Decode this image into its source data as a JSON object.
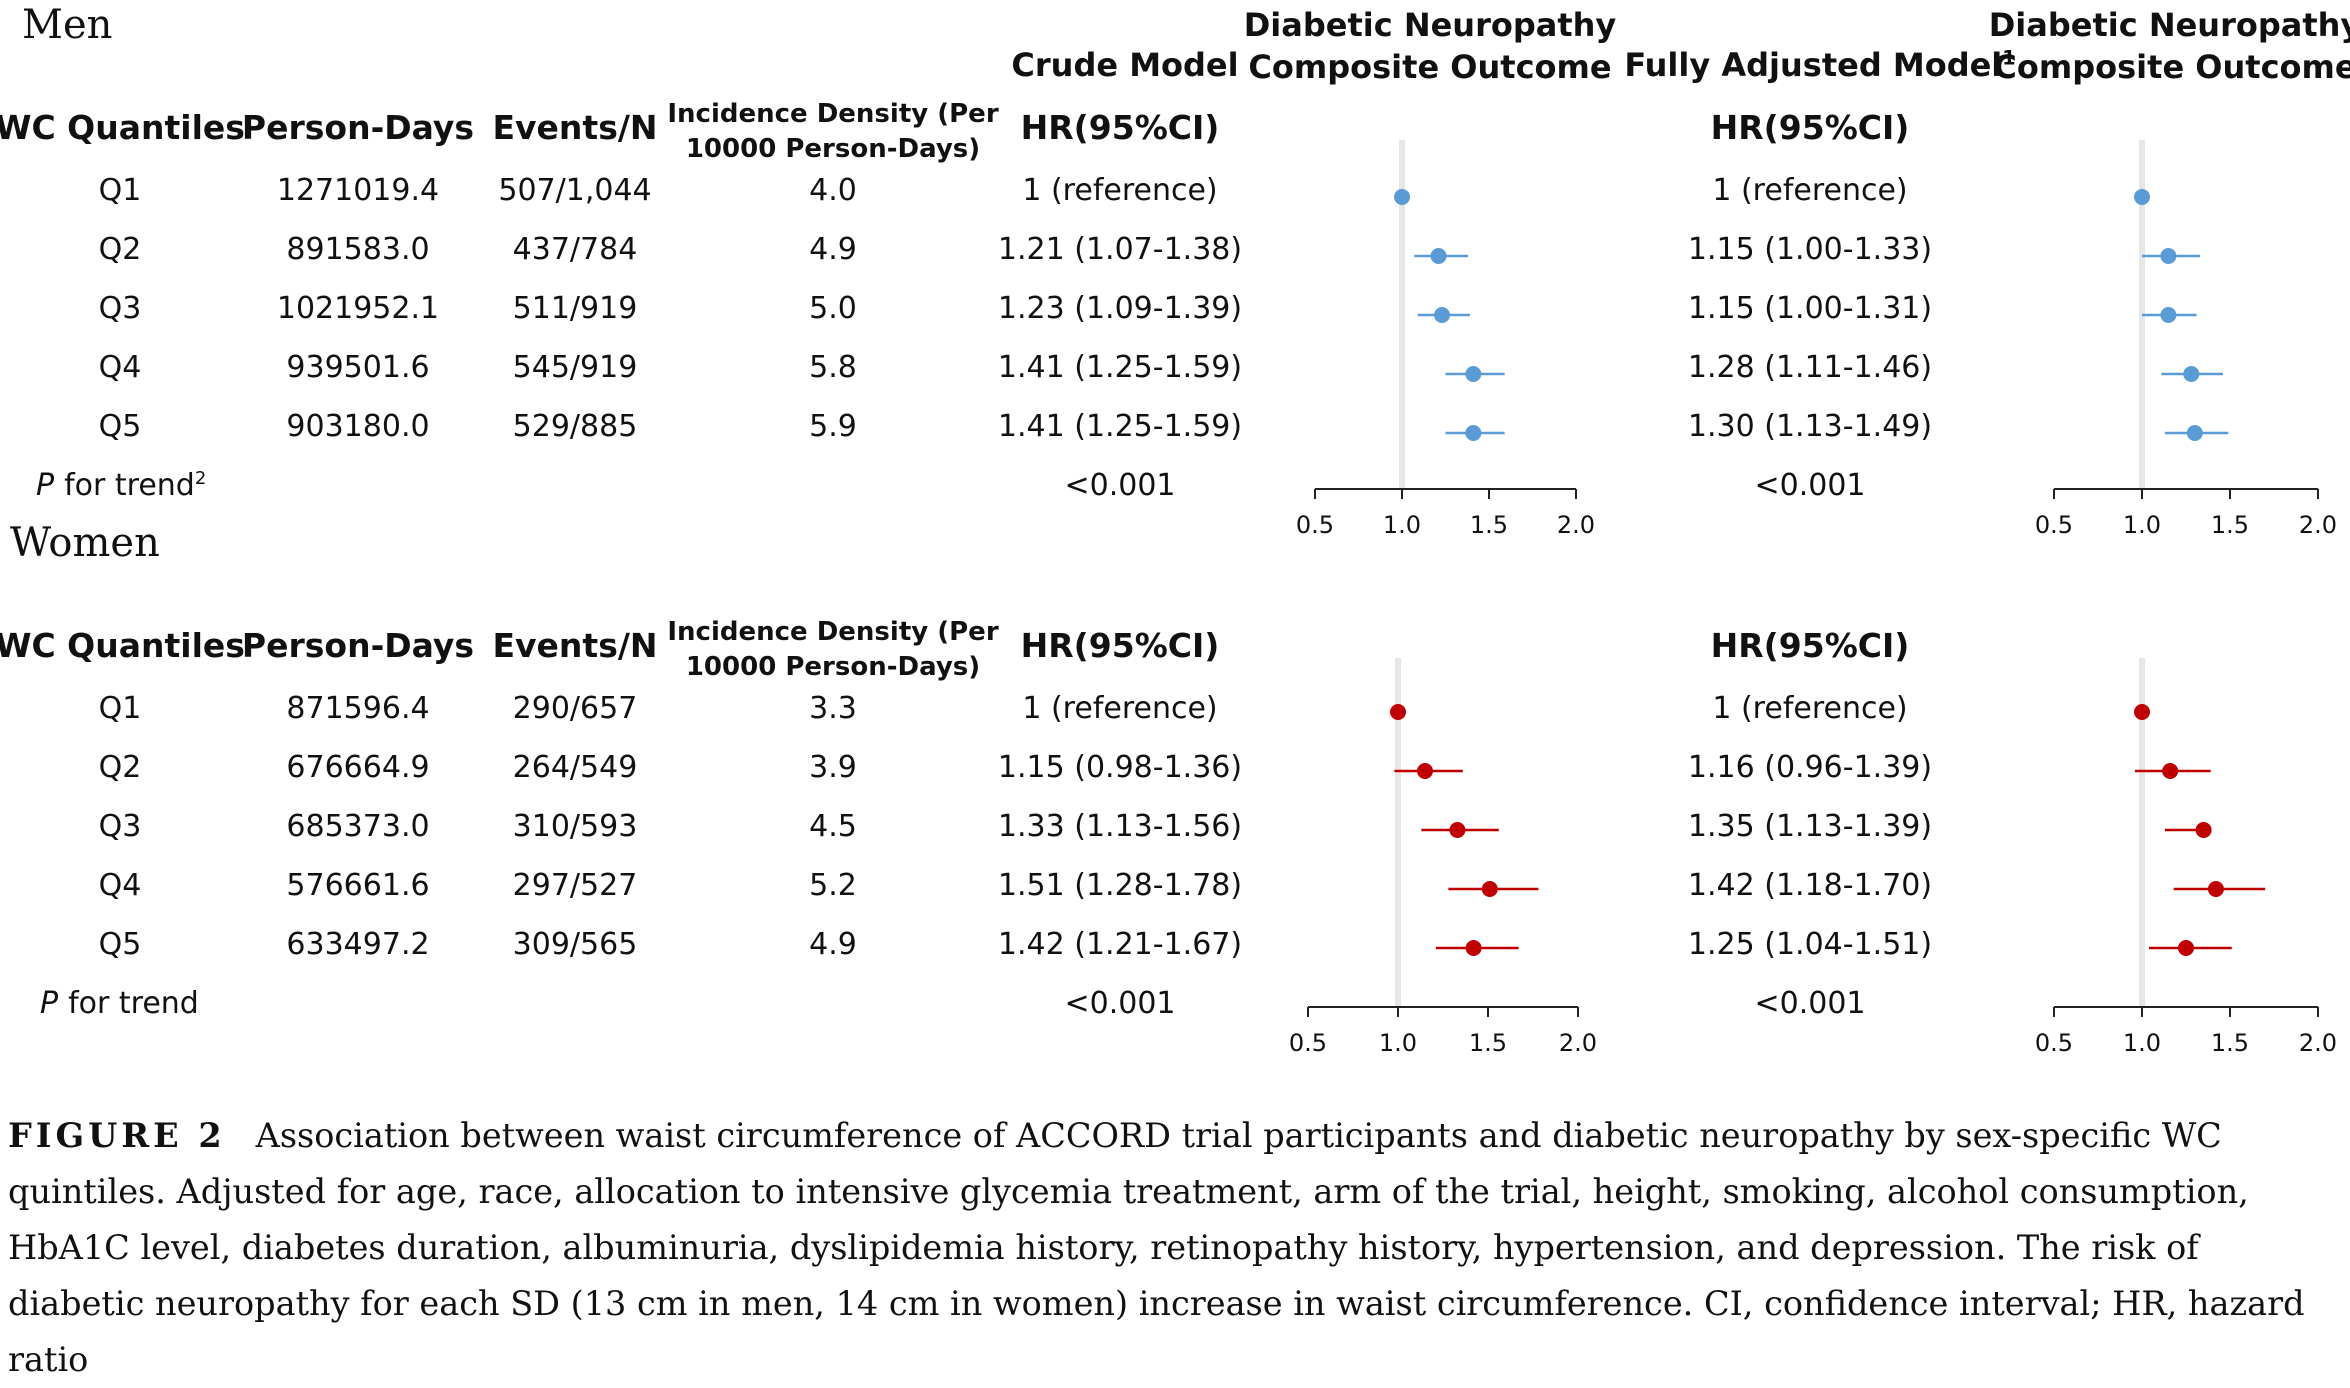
{
  "sections": [
    {
      "title": "Men",
      "trend_label": "for trend",
      "trend_sup": "2",
      "crude_trend": "<0.001",
      "adj_trend": "<0.001",
      "rows": [
        {
          "q": "Q1",
          "pd": "1271019.4",
          "ev": "507/1,044",
          "inc": "4.0",
          "crude": "1 (reference)",
          "adj": "1 (reference)"
        },
        {
          "q": "Q2",
          "pd": "891583.0",
          "ev": "437/784",
          "inc": "4.9",
          "crude": "1.21 (1.07-1.38)",
          "adj": "1.15 (1.00-1.33)"
        },
        {
          "q": "Q3",
          "pd": "1021952.1",
          "ev": "511/919",
          "inc": "5.0",
          "crude": "1.23 (1.09-1.39)",
          "adj": "1.15 (1.00-1.31)"
        },
        {
          "q": "Q4",
          "pd": "939501.6",
          "ev": "545/919",
          "inc": "5.8",
          "crude": "1.41 (1.25-1.59)",
          "adj": "1.28 (1.11-1.46)"
        },
        {
          "q": "Q5",
          "pd": "903180.0",
          "ev": "529/885",
          "inc": "5.9",
          "crude": "1.41 (1.25-1.59)",
          "adj": "1.30 (1.13-1.49)"
        }
      ]
    },
    {
      "title": "Women",
      "trend_label": "for trend",
      "trend_sup": "",
      "crude_trend": "<0.001",
      "adj_trend": "<0.001",
      "rows": [
        {
          "q": "Q1",
          "pd": "871596.4",
          "ev": "290/657",
          "inc": "3.3",
          "crude": "1 (reference)",
          "adj": "1 (reference)"
        },
        {
          "q": "Q2",
          "pd": "676664.9",
          "ev": "264/549",
          "inc": "3.9",
          "crude": "1.15 (0.98-1.36)",
          "adj": "1.16 (0.96-1.39)"
        },
        {
          "q": "Q3",
          "pd": "685373.0",
          "ev": "310/593",
          "inc": "4.5",
          "crude": "1.33 (1.13-1.56)",
          "adj": "1.35 (1.13-1.39)"
        },
        {
          "q": "Q4",
          "pd": "576661.6",
          "ev": "297/527",
          "inc": "5.2",
          "crude": "1.51 (1.28-1.78)",
          "adj": "1.42 (1.18-1.70)"
        },
        {
          "q": "Q5",
          "pd": "633497.2",
          "ev": "309/565",
          "inc": "4.9",
          "crude": "1.42 (1.21-1.67)",
          "adj": "1.25 (1.04-1.51)"
        }
      ]
    }
  ],
  "headers": {
    "wc": "WC Quantiles",
    "person_days": "Person-Days",
    "events": "Events/N",
    "incidence_l1": "Incidence Density (Per",
    "incidence_l2": "10000 Person-Days)",
    "hr": "HR(95%CI)",
    "crude_model": "Crude Model",
    "adjusted_model": "Fully Adjusted Model",
    "adjusted_sup": "1",
    "dn_l1": "Diabetic Neuropathy",
    "dn_l2": "Composite Outcome",
    "p_italic": "P"
  },
  "chart_data": {
    "type": "forest",
    "x_ticks": [
      "0.5",
      "1.0",
      "1.5",
      "2.0"
    ],
    "xlim": [
      0.5,
      2.0
    ],
    "reference_line": 1.0,
    "colors": {
      "men": "#5b9bd5",
      "women": "#c00000"
    },
    "panels": [
      {
        "sex": "Men",
        "model": "Crude Model",
        "hr": [
          1.0,
          1.21,
          1.23,
          1.41,
          1.41
        ],
        "lo": [
          1.0,
          1.07,
          1.09,
          1.25,
          1.25
        ],
        "hi": [
          1.0,
          1.38,
          1.39,
          1.59,
          1.59
        ]
      },
      {
        "sex": "Men",
        "model": "Fully Adjusted Model",
        "hr": [
          1.0,
          1.15,
          1.15,
          1.28,
          1.3
        ],
        "lo": [
          1.0,
          1.0,
          1.0,
          1.11,
          1.13
        ],
        "hi": [
          1.0,
          1.33,
          1.31,
          1.46,
          1.49
        ]
      },
      {
        "sex": "Women",
        "model": "Crude Model",
        "hr": [
          1.0,
          1.15,
          1.33,
          1.51,
          1.42
        ],
        "lo": [
          1.0,
          0.98,
          1.13,
          1.28,
          1.21
        ],
        "hi": [
          1.0,
          1.36,
          1.56,
          1.78,
          1.67
        ]
      },
      {
        "sex": "Women",
        "model": "Fully Adjusted Model",
        "hr": [
          1.0,
          1.16,
          1.35,
          1.42,
          1.25
        ],
        "lo": [
          1.0,
          0.96,
          1.13,
          1.18,
          1.04
        ],
        "hi": [
          1.0,
          1.39,
          1.39,
          1.7,
          1.51
        ]
      }
    ]
  },
  "caption": {
    "label": "FIGURE 2",
    "text": "Association between waist circumference of ACCORD trial participants and diabetic neuropathy by sex-specific WC quintiles. Adjusted for age, race, allocation to intensive glycemia treatment, arm of the trial, height, smoking, alcohol consumption, HbA1C level, diabetes duration, albuminuria, dyslipidemia history, retinopathy history, hypertension, and depression. The risk of diabetic neuropathy for each SD (13 cm in men, 14 cm in women) increase in waist circumference. CI, confidence interval; HR, hazard ratio"
  }
}
